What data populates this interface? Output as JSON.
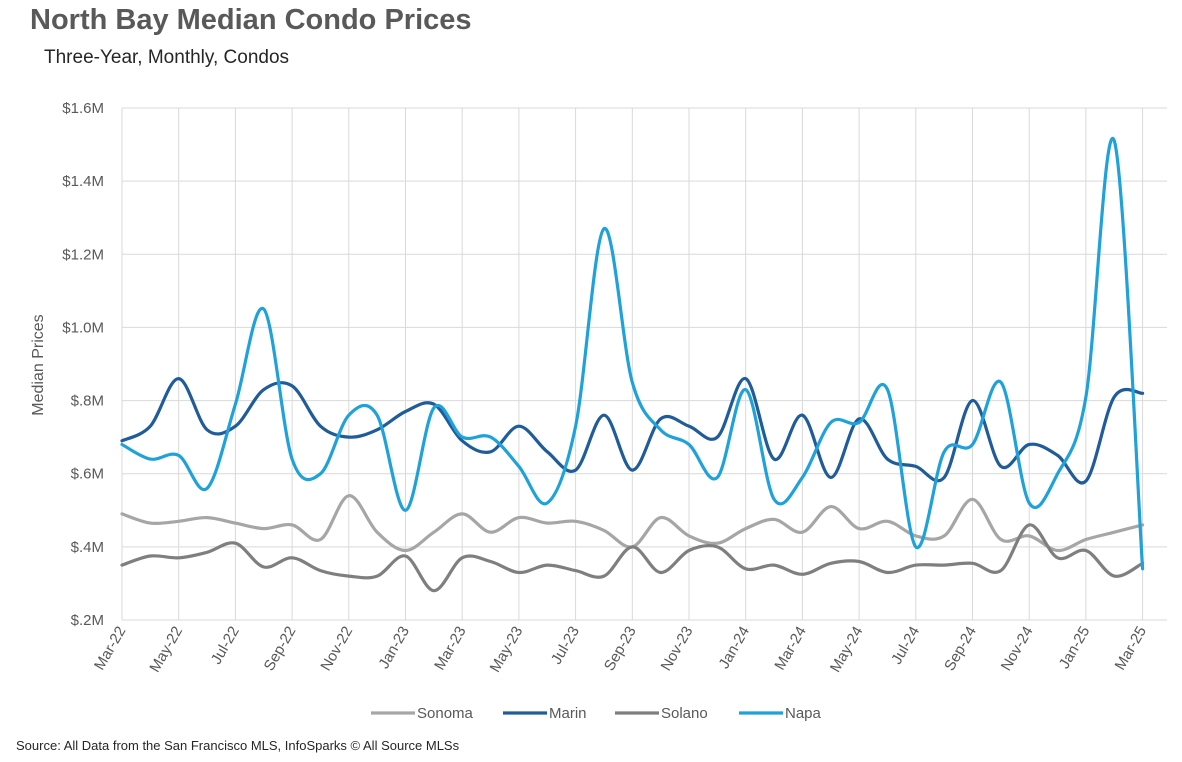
{
  "header": {
    "title": "North Bay Median Condo Prices",
    "subtitle": "Three-Year, Monthly, Condos"
  },
  "footer": {
    "source": "Source: All Data from the San Francisco MLS, InfoSparks © All Source MLSs"
  },
  "chart_data": {
    "type": "line",
    "title": "North Bay Median Condo Prices",
    "subtitle": "Three-Year, Monthly, Condos",
    "ylabel": "Median Prices",
    "xlabel": "",
    "ylim": [
      0.2,
      1.6
    ],
    "yticks": [
      0.2,
      0.4,
      0.6,
      0.8,
      1.0,
      1.2,
      1.4,
      1.6
    ],
    "ytick_labels": [
      "$.2M",
      "$.4M",
      "$.6M",
      "$.8M",
      "$1.0M",
      "$1.2M",
      "$1.4M",
      "$1.6M"
    ],
    "x": [
      "Mar-22",
      "Apr-22",
      "May-22",
      "Jun-22",
      "Jul-22",
      "Aug-22",
      "Sep-22",
      "Oct-22",
      "Nov-22",
      "Dec-22",
      "Jan-23",
      "Feb-23",
      "Mar-23",
      "Apr-23",
      "May-23",
      "Jun-23",
      "Jul-23",
      "Aug-23",
      "Sep-23",
      "Oct-23",
      "Nov-23",
      "Dec-23",
      "Jan-24",
      "Feb-24",
      "Mar-24",
      "Apr-24",
      "May-24",
      "Jun-24",
      "Jul-24",
      "Aug-24",
      "Sep-24",
      "Oct-24",
      "Nov-24",
      "Dec-24",
      "Jan-25",
      "Feb-25",
      "Mar-25"
    ],
    "xtick_labels": [
      "Mar-22",
      "May-22",
      "Jul-22",
      "Sep-22",
      "Nov-22",
      "Jan-23",
      "Mar-23",
      "May-23",
      "Jul-23",
      "Sep-23",
      "Nov-23",
      "Jan-24",
      "Mar-24",
      "May-24",
      "Jul-24",
      "Sep-24",
      "Nov-24",
      "Jan-25",
      "Mar-25"
    ],
    "grid": "both",
    "legend_position": "bottom",
    "series": [
      {
        "name": "Sonoma",
        "color": "#a6a6a6",
        "values": [
          0.49,
          0.465,
          0.47,
          0.48,
          0.465,
          0.45,
          0.46,
          0.42,
          0.54,
          0.44,
          0.39,
          0.44,
          0.49,
          0.44,
          0.48,
          0.465,
          0.47,
          0.445,
          0.4,
          0.48,
          0.43,
          0.41,
          0.45,
          0.475,
          0.44,
          0.51,
          0.45,
          0.47,
          0.43,
          0.43,
          0.53,
          0.42,
          0.43,
          0.39,
          0.42,
          0.44,
          0.46
        ]
      },
      {
        "name": "Marin",
        "color": "#1f5c99",
        "values": [
          0.69,
          0.73,
          0.86,
          0.72,
          0.73,
          0.83,
          0.84,
          0.73,
          0.7,
          0.72,
          0.77,
          0.79,
          0.69,
          0.66,
          0.73,
          0.66,
          0.61,
          0.76,
          0.61,
          0.75,
          0.73,
          0.7,
          0.86,
          0.64,
          0.76,
          0.59,
          0.75,
          0.64,
          0.62,
          0.59,
          0.8,
          0.62,
          0.68,
          0.65,
          0.58,
          0.81,
          0.82
        ]
      },
      {
        "name": "Solano",
        "color": "#7f7f7f",
        "values": [
          0.35,
          0.375,
          0.37,
          0.385,
          0.41,
          0.345,
          0.37,
          0.335,
          0.32,
          0.32,
          0.375,
          0.28,
          0.37,
          0.36,
          0.33,
          0.35,
          0.335,
          0.32,
          0.4,
          0.33,
          0.39,
          0.4,
          0.34,
          0.35,
          0.325,
          0.355,
          0.36,
          0.33,
          0.35,
          0.35,
          0.355,
          0.335,
          0.46,
          0.37,
          0.39,
          0.32,
          0.355
        ]
      },
      {
        "name": "Napa",
        "color": "#1fa2d9",
        "values": [
          0.68,
          0.64,
          0.65,
          0.56,
          0.79,
          1.05,
          0.64,
          0.6,
          0.76,
          0.76,
          0.5,
          0.78,
          0.7,
          0.7,
          0.62,
          0.52,
          0.73,
          1.27,
          0.85,
          0.72,
          0.68,
          0.59,
          0.83,
          0.53,
          0.59,
          0.74,
          0.74,
          0.83,
          0.4,
          0.66,
          0.68,
          0.85,
          0.52,
          0.6,
          0.81,
          1.51,
          0.34
        ]
      }
    ]
  }
}
